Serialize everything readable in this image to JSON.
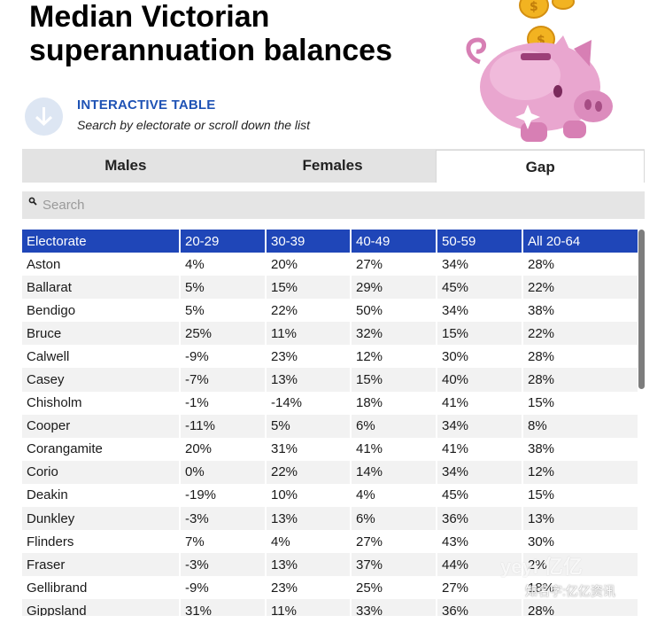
{
  "title": {
    "line1": "Median Victorian",
    "line2": "superannuation balances"
  },
  "intro": {
    "heading": "INTERACTIVE TABLE",
    "subtext": "Search by electorate or scroll down the list",
    "icon": "arrow-down-icon"
  },
  "tabs": [
    {
      "label": "Males",
      "active": false
    },
    {
      "label": "Females",
      "active": false
    },
    {
      "label": "Gap",
      "active": true
    }
  ],
  "search": {
    "placeholder": "Search",
    "value": ""
  },
  "table": {
    "headers": [
      "Electorate",
      "20-29",
      "30-39",
      "40-49",
      "50-59",
      "All 20-64"
    ],
    "rows": [
      [
        "Aston",
        "4%",
        "20%",
        "27%",
        "34%",
        "28%"
      ],
      [
        "Ballarat",
        "5%",
        "15%",
        "29%",
        "45%",
        "22%"
      ],
      [
        "Bendigo",
        "5%",
        "22%",
        "50%",
        "34%",
        "38%"
      ],
      [
        "Bruce",
        "25%",
        "11%",
        "32%",
        "15%",
        "22%"
      ],
      [
        "Calwell",
        "-9%",
        "23%",
        "12%",
        "30%",
        "28%"
      ],
      [
        "Casey",
        "-7%",
        "13%",
        "15%",
        "40%",
        "28%"
      ],
      [
        "Chisholm",
        "-1%",
        "-14%",
        "18%",
        "41%",
        "15%"
      ],
      [
        "Cooper",
        "-11%",
        "5%",
        "6%",
        "34%",
        "8%"
      ],
      [
        "Corangamite",
        "20%",
        "31%",
        "41%",
        "41%",
        "38%"
      ],
      [
        "Corio",
        "0%",
        "22%",
        "14%",
        "34%",
        "12%"
      ],
      [
        "Deakin",
        "-19%",
        "10%",
        "4%",
        "45%",
        "15%"
      ],
      [
        "Dunkley",
        "-3%",
        "13%",
        "6%",
        "36%",
        "13%"
      ],
      [
        "Flinders",
        "7%",
        "4%",
        "27%",
        "43%",
        "30%"
      ],
      [
        "Fraser",
        "-3%",
        "13%",
        "37%",
        "44%",
        "2%"
      ],
      [
        "Gellibrand",
        "-9%",
        "23%",
        "25%",
        "27%",
        "18%"
      ],
      [
        "Gippsland",
        "31%",
        "11%",
        "33%",
        "36%",
        "28%"
      ]
    ]
  },
  "watermark": {
    "logo": "yeyi 亿亿",
    "caption": "知名字:亿亿资讯"
  },
  "colors": {
    "header_bg": "#1f46b8",
    "intro_heading": "#1f53b5",
    "pig": "#e9a6cf",
    "coin": "#f2b321"
  }
}
